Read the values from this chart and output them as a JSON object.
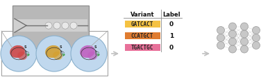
{
  "bg_color": "#ffffff",
  "table_header": [
    "Variant",
    "Label"
  ],
  "table_rows": [
    {
      "seq": "GATCACT",
      "label": "0",
      "color": "#f5c242"
    },
    {
      "seq": "CCATGCT",
      "label": "1",
      "color": "#e07c30"
    },
    {
      "seq": "TGACTGC",
      "label": "0",
      "color": "#e8719a"
    }
  ],
  "nn_layers": [
    3,
    4,
    4,
    3
  ],
  "node_color": "#c8c8c8",
  "node_edge_color": "#999999",
  "line_color": "#bbbbbb",
  "arrow_color": "#c0c0c0",
  "cell_bg": "#c0d8ee",
  "cell_bg_edge": "#8ab0cc",
  "zoom_bg": "#ffffff",
  "chip_bg": "#b8b8b8",
  "chip_edge": "#888888",
  "cell_colors": [
    "#d04848",
    "#d4a030",
    "#c060c0"
  ],
  "cell_colors2": [
    "#e86868",
    "#e8b848",
    "#c888c8"
  ]
}
